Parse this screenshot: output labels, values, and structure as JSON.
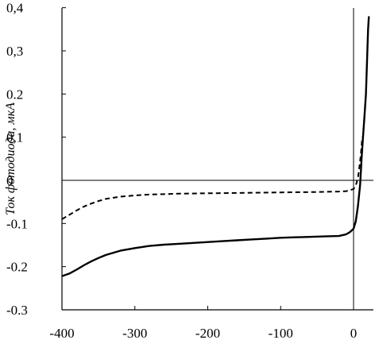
{
  "chart_data": {
    "type": "line",
    "title": "",
    "xlabel": "",
    "ylabel": "Ток фотодиода, мкА",
    "xlim": [
      -400,
      20
    ],
    "ylim": [
      -0.3,
      0.4
    ],
    "x_ticks": [
      -400,
      -300,
      -200,
      -100,
      0
    ],
    "x_tick_labels": [
      "-400",
      "-300",
      "-200",
      "-100",
      "0"
    ],
    "y_ticks": [
      -0.3,
      -0.2,
      -0.1,
      0,
      0.1,
      0.2,
      0.3,
      0.4
    ],
    "y_tick_labels": [
      "-0.3",
      "-0.2",
      "-0.1",
      "0",
      "0,1",
      "0.2",
      "0,3",
      "0,4"
    ],
    "grid": false,
    "reference_lines": {
      "x": 0,
      "y": 0
    },
    "series": [
      {
        "style": "solid",
        "color": "#000000",
        "x": [
          -400,
          -390,
          -380,
          -370,
          -360,
          -350,
          -340,
          -320,
          -300,
          -280,
          -260,
          -240,
          -220,
          -200,
          -180,
          -160,
          -140,
          -120,
          -100,
          -80,
          -60,
          -40,
          -20,
          -10,
          -5,
          0,
          3,
          6,
          9,
          11,
          13,
          15,
          17,
          18,
          19,
          20,
          21
        ],
        "y": [
          -0.222,
          -0.216,
          -0.207,
          -0.197,
          -0.188,
          -0.18,
          -0.173,
          -0.163,
          -0.157,
          -0.152,
          -0.149,
          -0.147,
          -0.145,
          -0.143,
          -0.141,
          -0.139,
          -0.137,
          -0.135,
          -0.133,
          -0.132,
          -0.131,
          -0.13,
          -0.129,
          -0.125,
          -0.12,
          -0.112,
          -0.095,
          -0.06,
          -0.01,
          0.05,
          0.1,
          0.15,
          0.2,
          0.25,
          0.3,
          0.35,
          0.38
        ]
      },
      {
        "style": "dashed",
        "color": "#000000",
        "x": [
          -400,
          -390,
          -380,
          -370,
          -360,
          -350,
          -340,
          -320,
          -300,
          -280,
          -260,
          -240,
          -200,
          -150,
          -100,
          -50,
          -20,
          -10,
          -5,
          0,
          3,
          6,
          8,
          10,
          12
        ],
        "y": [
          -0.09,
          -0.08,
          -0.07,
          -0.061,
          -0.054,
          -0.048,
          -0.043,
          -0.038,
          -0.035,
          -0.033,
          -0.032,
          -0.031,
          -0.03,
          -0.029,
          -0.028,
          -0.027,
          -0.026,
          -0.025,
          -0.023,
          -0.02,
          -0.012,
          0.005,
          0.03,
          0.06,
          0.1
        ]
      }
    ]
  }
}
